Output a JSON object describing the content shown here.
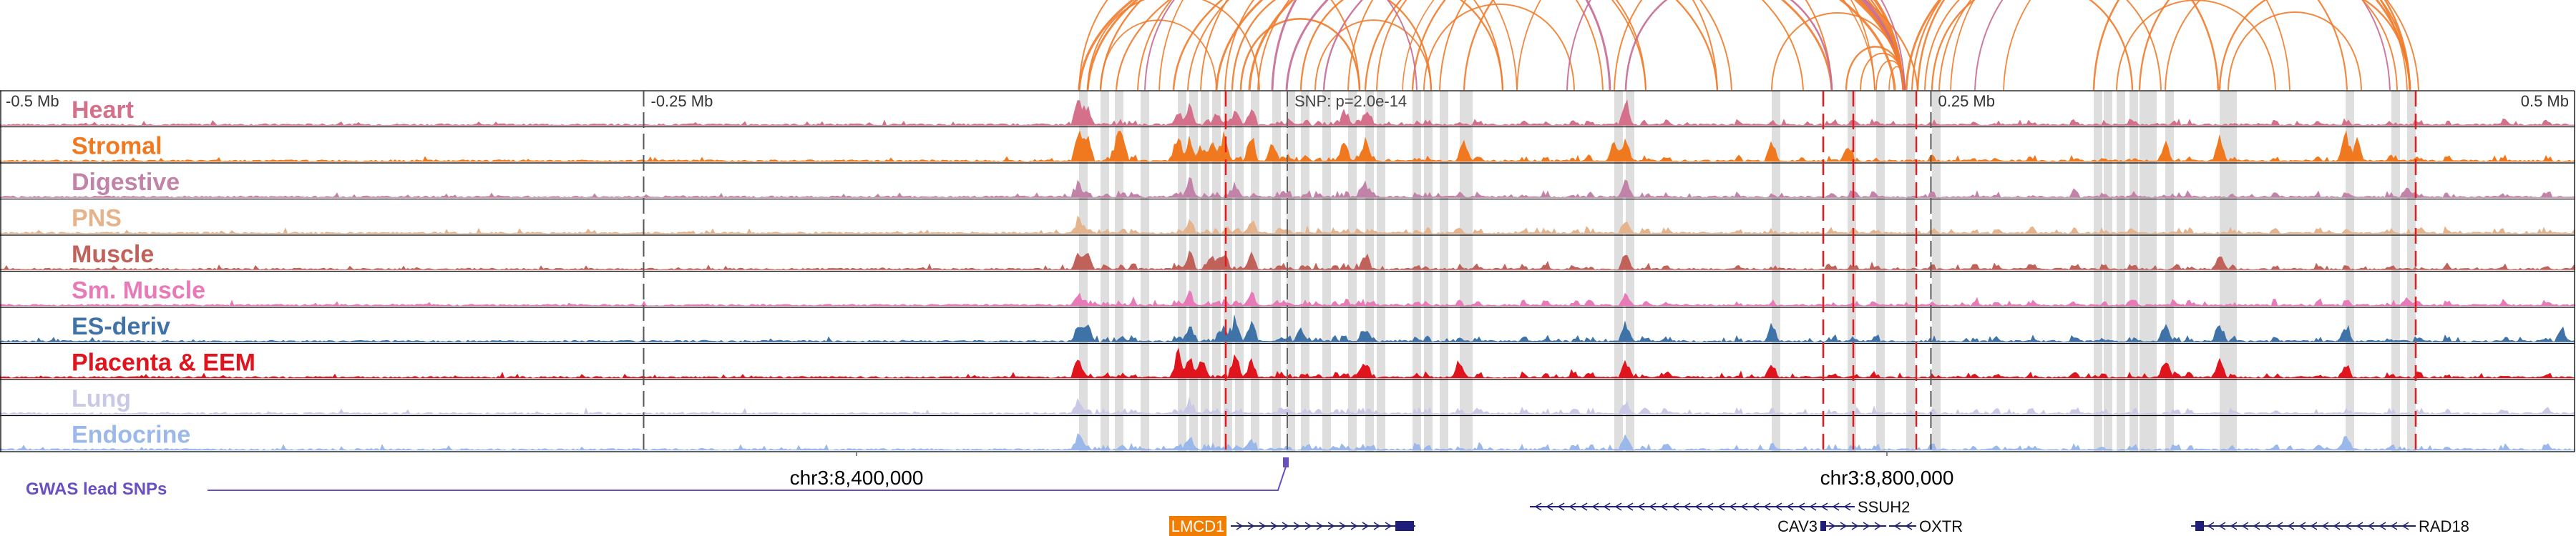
{
  "axis": {
    "ticks": [
      {
        "label": "-0.5 Mb",
        "frac": 0.0
      },
      {
        "label": "-0.25 Mb",
        "frac": 0.25
      },
      {
        "label": "0.25 Mb",
        "frac": 0.75
      },
      {
        "label": "0.5 Mb",
        "frac": 1.0
      }
    ],
    "snp_label": "SNP: p=2.0e-14",
    "snp_frac": 0.5
  },
  "tracks": [
    {
      "label": "Heart",
      "color": "#d4708a"
    },
    {
      "label": "Stromal",
      "color": "#f0781f"
    },
    {
      "label": "Digestive",
      "color": "#c283a8"
    },
    {
      "label": "PNS",
      "color": "#e6b48c"
    },
    {
      "label": "Muscle",
      "color": "#c0615a"
    },
    {
      "label": "Sm. Muscle",
      "color": "#e87ab8"
    },
    {
      "label": "ES-deriv",
      "color": "#3f72a6"
    },
    {
      "label": "Placenta & EEM",
      "color": "#e0141c"
    },
    {
      "label": "Lung",
      "color": "#c9c9e6"
    },
    {
      "label": "Endocrine",
      "color": "#9ab8ea"
    }
  ],
  "gwas_label": "GWAS lead SNPs",
  "coords": [
    {
      "label": "chr3:8,400,000",
      "frac": 0.333
    },
    {
      "label": "chr3:8,800,000",
      "frac": 0.733
    }
  ],
  "genes": [
    {
      "name": "LMCD1",
      "highlight": true,
      "strand": "+"
    },
    {
      "name": "SSUH2",
      "highlight": false,
      "strand": "-"
    },
    {
      "name": "CAV3",
      "highlight": false,
      "strand": "+"
    },
    {
      "name": "OXTR",
      "highlight": false,
      "strand": "-"
    },
    {
      "name": "RAD18",
      "highlight": false,
      "strand": "-"
    }
  ],
  "colors": {
    "loop_orange": "#f07c2c",
    "loop_pink": "#c66a93",
    "gwas": "#6a4fc2",
    "highlight_band": "#dedede",
    "dashed_line": "#e41a1c",
    "gene": "#1f1f7a",
    "gene_highlight": "#f07c00"
  }
}
